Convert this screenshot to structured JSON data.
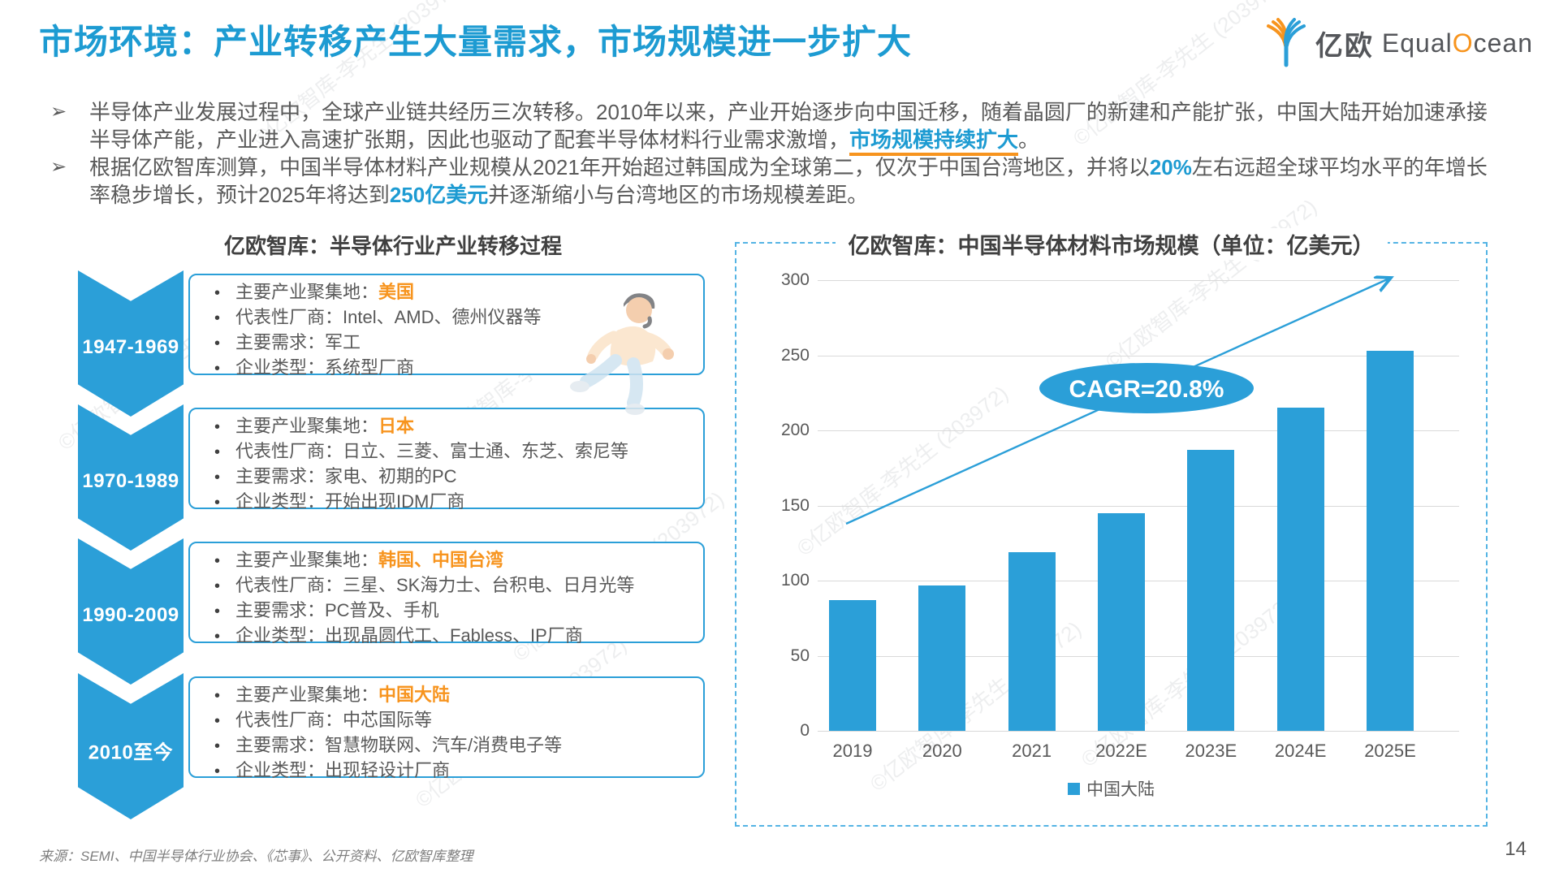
{
  "header": {
    "title": "市场环境：产业转移产生大量需求，市场规模进一步扩大"
  },
  "logo": {
    "cn": "亿欧",
    "en_equal": "Equal",
    "en_o": "O",
    "en_cean": "cean"
  },
  "bullets": [
    {
      "marker": "➢",
      "runs": [
        {
          "t": "半导体产业发展过程中，全球产业链共经历三次转移。2010年以来，产业开始逐步向中国迁移，随着晶圆厂的新建和产能扩张，中国大陆开始加速承接半导体产能，产业进入高速扩张期，因此也驱动了配套半导体材料行业需求激增，",
          "s": "normal"
        },
        {
          "t": "市场规模持续扩大",
          "s": "hlu"
        },
        {
          "t": "。",
          "s": "normal"
        }
      ]
    },
    {
      "marker": "➢",
      "runs": [
        {
          "t": "根据亿欧智库测算，中国半导体材料产业规模从2021年开始超过韩国成为全球第二，仅次于中国台湾地区，并将以",
          "s": "normal"
        },
        {
          "t": "20%",
          "s": "hl"
        },
        {
          "t": "左右远超全球平均水平的年增长率稳步增长，预计2025年将达到",
          "s": "normal"
        },
        {
          "t": "250亿美元",
          "s": "hl"
        },
        {
          "t": "并逐渐缩小与台湾地区的市场规模差距。",
          "s": "normal"
        }
      ]
    }
  ],
  "diagram": {
    "title": "亿欧智库：半导体行业产业转移过程",
    "periods": [
      {
        "year": "1947-1969",
        "items": [
          {
            "text": "主要产业聚集地：",
            "highlight": "美国"
          },
          {
            "text": "代表性厂商：Intel、AMD、德州仪器等"
          },
          {
            "text": "主要需求：军工"
          },
          {
            "text": "企业类型：系统型厂商"
          }
        ]
      },
      {
        "year": "1970-1989",
        "items": [
          {
            "text": "主要产业聚集地：",
            "highlight": "日本"
          },
          {
            "text": "代表性厂商：日立、三菱、富士通、东芝、索尼等"
          },
          {
            "text": "主要需求：家电、初期的PC"
          },
          {
            "text": "企业类型：开始出现IDM厂商"
          }
        ]
      },
      {
        "year": "1990-2009",
        "items": [
          {
            "text": "主要产业聚集地：",
            "highlight": "韩国、中国台湾"
          },
          {
            "text": "代表性厂商：三星、SK海力士、台积电、日月光等"
          },
          {
            "text": "主要需求：PC普及、手机"
          },
          {
            "text": "企业类型：出现晶圆代工、Fabless、IP厂商"
          }
        ]
      },
      {
        "year": "2010至今",
        "items": [
          {
            "text": "主要产业聚集地：",
            "highlight": "中国大陆"
          },
          {
            "text": "代表性厂商：中芯国际等"
          },
          {
            "text": "主要需求：智慧物联网、汽车/消费电子等"
          },
          {
            "text": "企业类型：出现轻设计厂商"
          }
        ]
      }
    ]
  },
  "chart_data": {
    "type": "bar",
    "title": "亿欧智库：中国半导体材料市场规模（单位：亿美元）",
    "categories": [
      "2019",
      "2020",
      "2021",
      "2022E",
      "2023E",
      "2024E",
      "2025E"
    ],
    "values": [
      87,
      97,
      119,
      145,
      187,
      215,
      253
    ],
    "series_name": "中国大陆",
    "ylim": [
      0,
      300
    ],
    "yticks": [
      0,
      50,
      100,
      150,
      200,
      250,
      300
    ],
    "grid": true,
    "legend_position": "bottom",
    "annotation": "CAGR=20.8%",
    "bar_color": "#2b9fd8"
  },
  "footer": {
    "source": "来源：SEMI、中国半导体行业协会、《芯事》、公开资料、亿欧智库整理",
    "page": "14"
  },
  "watermark": "©亿欧智库-李先生 (203972)",
  "colors": {
    "accent_blue": "#1d9bd2",
    "bar_blue": "#2b9fd8",
    "orange": "#f7941e",
    "body_text": "#595959"
  }
}
